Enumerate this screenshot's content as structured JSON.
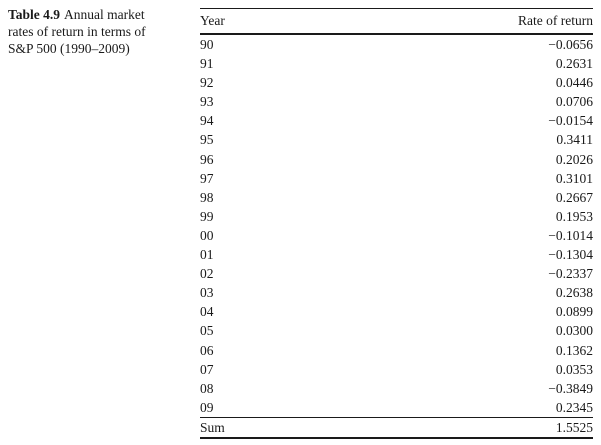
{
  "caption": {
    "label": "Table 4.9",
    "line1_rest": "Annual market",
    "line2": "rates of return in terms of",
    "line3": "S&P 500 (1990–2009)"
  },
  "table": {
    "columns": [
      "Year",
      "Rate of return"
    ],
    "rows": [
      {
        "year": "90",
        "rate": "−0.0656"
      },
      {
        "year": "91",
        "rate": "0.2631"
      },
      {
        "year": "92",
        "rate": "0.0446"
      },
      {
        "year": "93",
        "rate": "0.0706"
      },
      {
        "year": "94",
        "rate": "−0.0154"
      },
      {
        "year": "95",
        "rate": "0.3411"
      },
      {
        "year": "96",
        "rate": "0.2026"
      },
      {
        "year": "97",
        "rate": "0.3101"
      },
      {
        "year": "98",
        "rate": "0.2667"
      },
      {
        "year": "99",
        "rate": "0.1953"
      },
      {
        "year": "00",
        "rate": "−0.1014"
      },
      {
        "year": "01",
        "rate": "−0.1304"
      },
      {
        "year": "02",
        "rate": "−0.2337"
      },
      {
        "year": "03",
        "rate": "0.2638"
      },
      {
        "year": "04",
        "rate": "0.0899"
      },
      {
        "year": "05",
        "rate": "0.0300"
      },
      {
        "year": "06",
        "rate": "0.1362"
      },
      {
        "year": "07",
        "rate": "0.0353"
      },
      {
        "year": "08",
        "rate": "−0.3849"
      },
      {
        "year": "09",
        "rate": "0.2345"
      }
    ],
    "footer": {
      "year": "Sum",
      "rate": "1.5525"
    }
  },
  "colors": {
    "text": "#1a1a1a",
    "background": "#ffffff",
    "rule": "#1a1a1a"
  }
}
